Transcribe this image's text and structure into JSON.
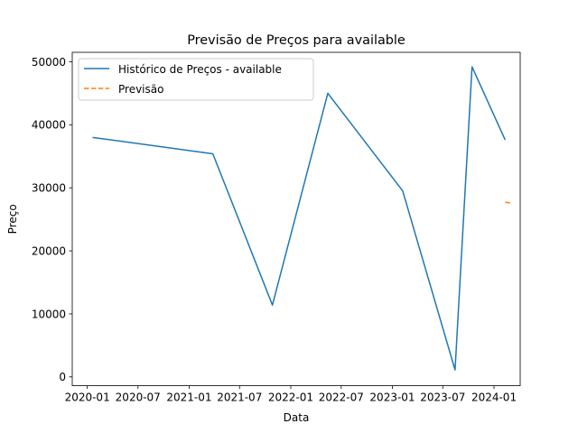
{
  "chart_data": {
    "type": "line",
    "title": "Previsão de Preços para available",
    "xlabel": "Data",
    "ylabel": "Preço",
    "grid": false,
    "legend_position": "top-left",
    "x_ticks": [
      "2020-01",
      "2020-07",
      "2021-01",
      "2021-07",
      "2022-01",
      "2022-07",
      "2023-01",
      "2023-07",
      "2024-01"
    ],
    "y_ticks": [
      0,
      10000,
      20000,
      30000,
      40000,
      50000
    ],
    "xlim": [
      "2019-11-08",
      "2024-04-04"
    ],
    "ylim": [
      -1400,
      51500
    ],
    "series": [
      {
        "name": "Histórico de Preços - available",
        "color": "#1f77b4",
        "style": "solid",
        "x": [
          "2020-01-20",
          "2021-03-27",
          "2021-10-27",
          "2022-05-14",
          "2023-02-07",
          "2023-08-14",
          "2023-10-14",
          "2024-02-10"
        ],
        "y": [
          38000,
          35400,
          11400,
          45000,
          29500,
          1100,
          49200,
          37600
        ]
      },
      {
        "name": "Previsão",
        "color": "#ff7f0e",
        "style": "dashed",
        "x": [
          "2024-02-10",
          "2024-03-04"
        ],
        "y": [
          27700,
          27600
        ]
      }
    ]
  }
}
